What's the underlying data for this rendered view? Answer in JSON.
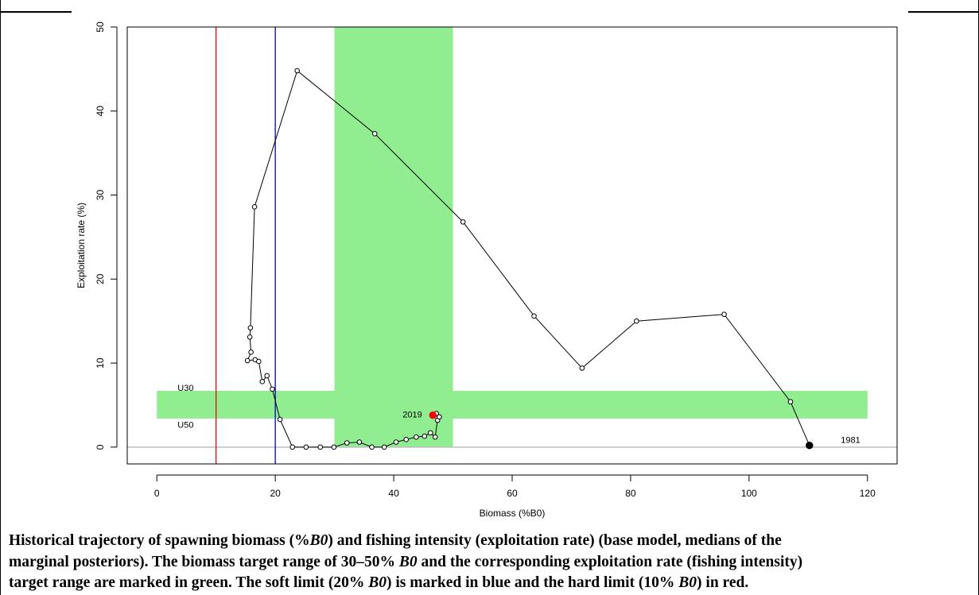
{
  "chart_data": {
    "type": "line",
    "title": "",
    "xlabel": "Biomass (%B0)",
    "ylabel": "Exploitation rate (%)",
    "xlim": [
      -5,
      125
    ],
    "ylim": [
      -2,
      50
    ],
    "xticks": [
      0,
      20,
      40,
      60,
      80,
      100,
      120
    ],
    "yticks": [
      0,
      10,
      20,
      30,
      40,
      50
    ],
    "grid": false,
    "target_biomass_range": [
      30,
      50
    ],
    "target_exploitation_range": [
      3.4,
      6.7
    ],
    "target_exploitation_xrange": [
      0,
      120
    ],
    "soft_limit": 20,
    "hard_limit": 10,
    "colors": {
      "target": "#90ee90",
      "soft_limit": "#0000cc",
      "hard_limit": "#ff0000",
      "series": "#000000",
      "last_point": "#ff0000",
      "zero_line": "#bebebe"
    },
    "series": [
      {
        "points": [
          [
            110.2,
            0.2
          ],
          [
            107.0,
            5.4
          ],
          [
            95.8,
            15.8
          ],
          [
            81.0,
            15.0
          ],
          [
            71.8,
            9.4
          ],
          [
            63.7,
            15.6
          ],
          [
            51.7,
            26.8
          ],
          [
            36.8,
            37.3
          ],
          [
            23.7,
            44.8
          ],
          [
            16.5,
            28.6
          ],
          [
            15.8,
            14.2
          ],
          [
            15.7,
            13.1
          ],
          [
            15.9,
            11.3
          ],
          [
            15.3,
            10.3
          ],
          [
            16.6,
            10.4
          ],
          [
            17.2,
            10.2
          ],
          [
            17.8,
            7.8
          ],
          [
            18.6,
            8.5
          ],
          [
            19.5,
            6.9
          ],
          [
            20.8,
            3.3
          ],
          [
            22.9,
            0.0
          ],
          [
            25.2,
            0.0
          ],
          [
            27.6,
            0.0
          ],
          [
            29.9,
            0.0
          ],
          [
            32.1,
            0.5
          ],
          [
            34.2,
            0.6
          ],
          [
            36.3,
            0.0
          ],
          [
            38.4,
            0.0
          ],
          [
            40.4,
            0.6
          ],
          [
            42.1,
            0.9
          ],
          [
            43.8,
            1.2
          ],
          [
            45.2,
            1.3
          ],
          [
            46.2,
            1.7
          ],
          [
            47.0,
            1.2
          ],
          [
            47.4,
            3.2
          ],
          [
            47.7,
            3.6
          ],
          [
            47.2,
            4.0
          ],
          [
            46.6,
            3.8
          ]
        ]
      }
    ],
    "annotations": [
      {
        "text": "U30",
        "x": 3.5,
        "y": 7.1
      },
      {
        "text": "U50",
        "x": 3.5,
        "y": 2.7
      },
      {
        "text": "2019",
        "x": 41.5,
        "y": 3.9
      },
      {
        "text": "1981",
        "x": 115.5,
        "y": 0.9
      }
    ]
  },
  "caption": {
    "line1_pre": "Historical trajectory of spawning biomass (%",
    "b0": "B0",
    "line1_post": ") and fishing intensity (exploitation rate) (base model, medians of the",
    "line2_pre": "marginal posteriors). The biomass target range of 30–50% ",
    "line2_post": " and the corresponding exploitation rate (fishing intensity)",
    "line3_pre": "target range are marked in green. The soft limit (20% ",
    "line3_mid": ") is marked in blue and the hard limit (10% ",
    "line3_post": ") in red."
  }
}
